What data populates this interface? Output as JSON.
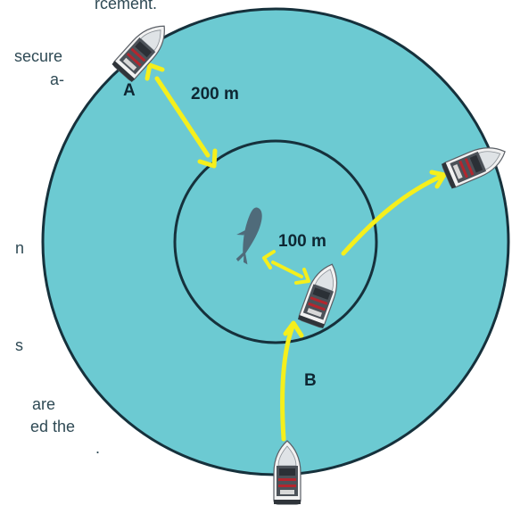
{
  "side_text": [
    "rcement.",
    "secure",
    "a-",
    "n",
    "s",
    "are",
    "ed the",
    "."
  ],
  "labels": {
    "outer_distance": "200 m",
    "inner_distance": "100 m",
    "boat_a": "A",
    "boat_b": "B"
  },
  "colors": {
    "water": "#6ccad2",
    "ring": "#16313c",
    "arrow": "#f5ef1c",
    "whale": "#4f6b7a"
  },
  "icons": [
    "boat-icon",
    "whale-icon"
  ]
}
